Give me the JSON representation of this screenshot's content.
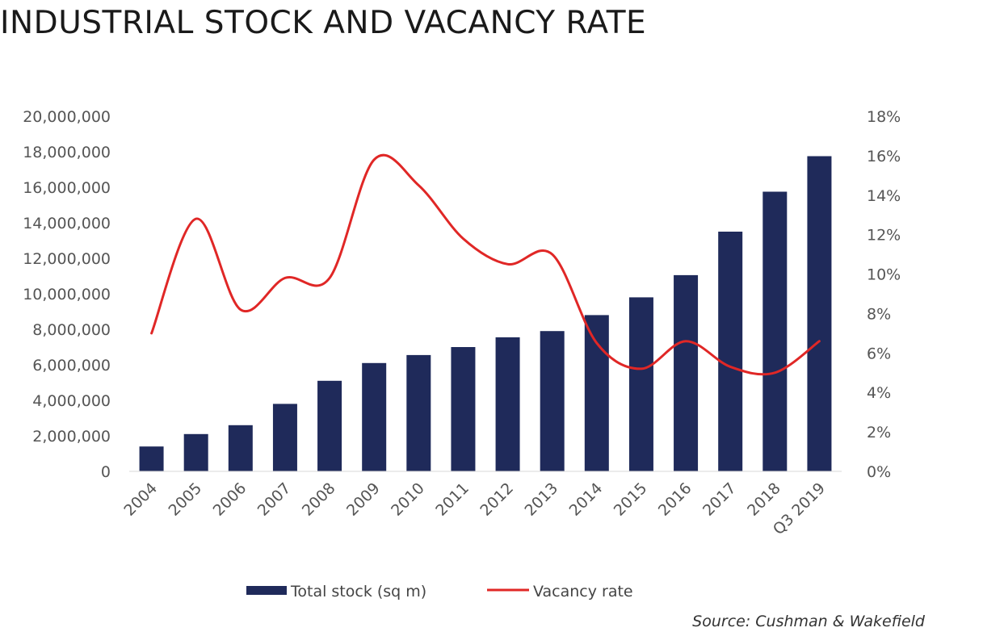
{
  "chart_data": {
    "type": "bar",
    "title": "INDUSTRIAL STOCK AND VACANCY RATE",
    "categories": [
      "2004",
      "2005",
      "2006",
      "2007",
      "2008",
      "2009",
      "2010",
      "2011",
      "2012",
      "2013",
      "2014",
      "2015",
      "2016",
      "2017",
      "2018",
      "Q3 2019"
    ],
    "series": [
      {
        "name": "Total stock (sq m)",
        "type": "bar",
        "axis": "left",
        "color": "#1f2a5a",
        "values": [
          1400000,
          2100000,
          2600000,
          3800000,
          5100000,
          6100000,
          6550000,
          7000000,
          7550000,
          7900000,
          8800000,
          9800000,
          11050000,
          13500000,
          15750000,
          17750000
        ]
      },
      {
        "name": "Vacancy rate",
        "type": "line",
        "axis": "right",
        "color": "#e02726",
        "values": [
          7.0,
          12.8,
          8.2,
          9.8,
          9.8,
          15.8,
          14.5,
          11.8,
          10.5,
          11.0,
          6.5,
          5.2,
          6.6,
          5.3,
          5.0,
          6.6
        ]
      }
    ],
    "y_left": {
      "ylim": [
        0,
        20000000
      ],
      "ticks": [
        "0",
        "2,000,000",
        "4,000,000",
        "6,000,000",
        "8,000,000",
        "10,000,000",
        "12,000,000",
        "14,000,000",
        "16,000,000",
        "18,000,000",
        "20,000,000"
      ]
    },
    "y_right": {
      "ylim": [
        0,
        18
      ],
      "ticks": [
        "0%",
        "2%",
        "4%",
        "6%",
        "8%",
        "10%",
        "12%",
        "14%",
        "16%",
        "18%"
      ]
    },
    "grid": false,
    "legend": {
      "placement": "bottom-center",
      "items": [
        "Total stock (sq m)",
        "Vacancy rate"
      ]
    },
    "source": "Source: Cushman & Wakefield"
  }
}
